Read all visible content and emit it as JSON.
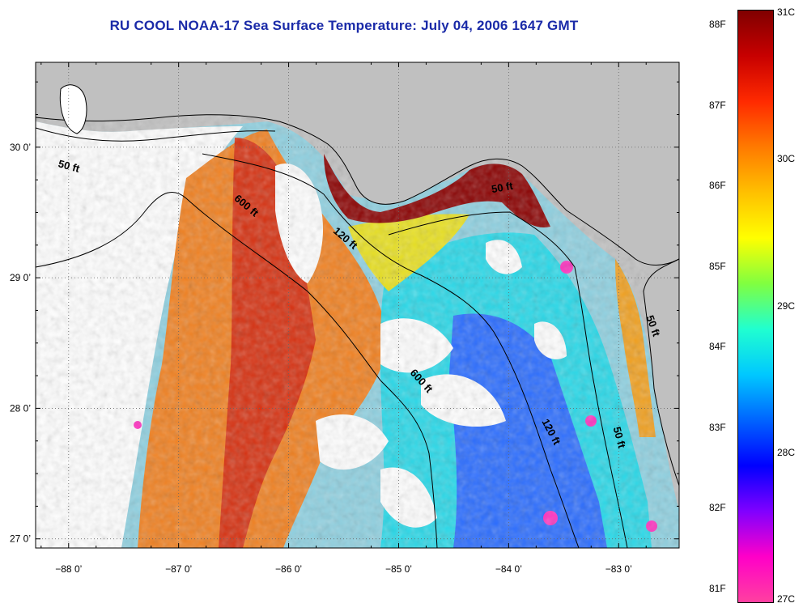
{
  "title": "RU COOL  NOAA-17  Sea Surface Temperature:  July 04, 2006 1647 GMT",
  "map": {
    "lon_range": [
      -88.3,
      -82.45
    ],
    "lat_range": [
      26.93,
      30.65
    ],
    "lon_ticks": [
      -88,
      -87,
      -86,
      -85,
      -84,
      -83
    ],
    "lon_tick_labels": [
      "−88 0’",
      "−87 0’",
      "−86 0’",
      "−85 0’",
      "−84 0’",
      "−83 0’"
    ],
    "lat_ticks": [
      30,
      29,
      28,
      27
    ],
    "lat_tick_labels": [
      "30 0’",
      "29 0’",
      "28 0’",
      "27 0’"
    ],
    "land_color": "#c0c0c0",
    "cloud_color": "#ffffff",
    "grid": "dotted",
    "contour_labels": [
      {
        "text": "50 ft",
        "lon": -88.1,
        "lat": 29.85,
        "angle": 15
      },
      {
        "text": "600 ft",
        "lon": -86.5,
        "lat": 29.6,
        "angle": 40
      },
      {
        "text": "120 ft",
        "lon": -85.6,
        "lat": 29.35,
        "angle": 40
      },
      {
        "text": "50 ft",
        "lon": -84.15,
        "lat": 29.65,
        "angle": -10
      },
      {
        "text": "600 ft",
        "lon": -84.9,
        "lat": 28.27,
        "angle": 48
      },
      {
        "text": "120 ft",
        "lon": -83.7,
        "lat": 27.9,
        "angle": 62
      },
      {
        "text": "50 ft",
        "lon": -83.05,
        "lat": 27.85,
        "angle": 75
      },
      {
        "text": "50 ft",
        "lon": -82.75,
        "lat": 28.7,
        "angle": 70
      }
    ]
  },
  "colorbar": {
    "fahrenheit_labels": [
      "88F",
      "87F",
      "86F",
      "85F",
      "84F",
      "83F",
      "82F",
      "81F"
    ],
    "celsius_labels": [
      "31C",
      "30C",
      "29C",
      "28C",
      "27C"
    ],
    "colors_top_to_bottom": [
      "#800000",
      "#c80000",
      "#ff2a00",
      "#ff7a00",
      "#ffc000",
      "#ffff00",
      "#80ff40",
      "#20ffd0",
      "#00c8ff",
      "#0064ff",
      "#0000ff",
      "#8000ff",
      "#ff00c8",
      "#ff40a0"
    ]
  }
}
